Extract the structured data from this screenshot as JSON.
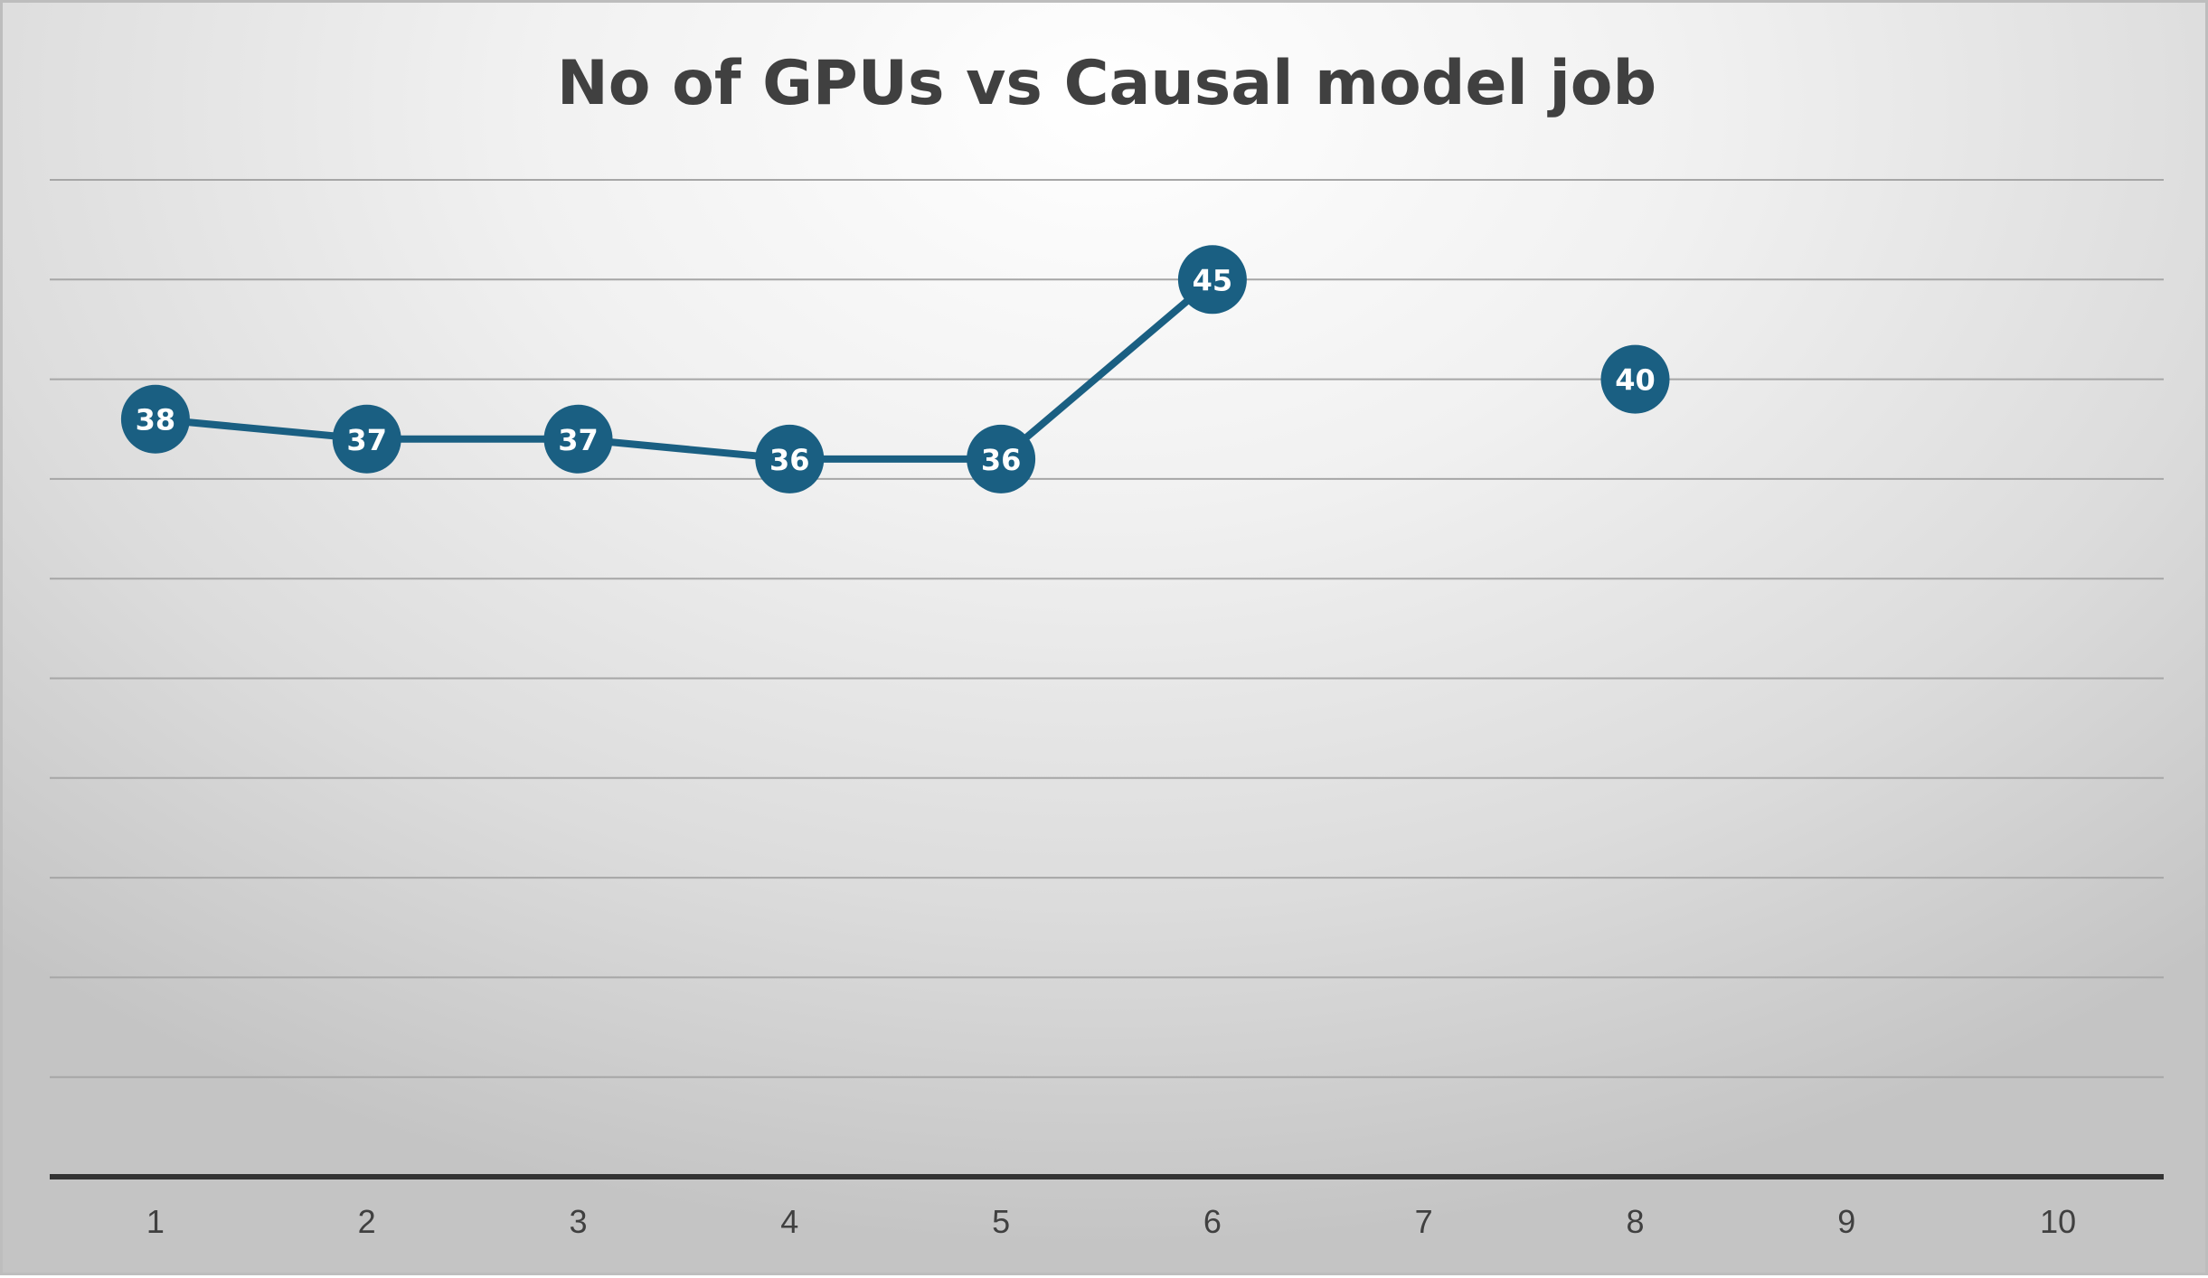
{
  "chart_data": {
    "type": "line",
    "title": "No of GPUs vs Causal model job",
    "xlabel": "",
    "ylabel": "",
    "categories": [
      "1",
      "2",
      "3",
      "4",
      "5",
      "6",
      "7",
      "8",
      "9",
      "10"
    ],
    "series": [
      {
        "values": [
          38,
          37,
          37,
          36,
          36,
          45,
          null,
          40,
          null,
          null
        ]
      }
    ],
    "ylim": [
      0,
      50
    ],
    "y_gridline_step": 5,
    "y_tick_labels_shown": false,
    "data_labels": true,
    "legend": "none",
    "grid": true
  },
  "colors": {
    "series": "#1a5f82",
    "data_label_text": "#ffffff",
    "gridline": "#a6a6a6",
    "axis_line": "#333333",
    "text": "#404040"
  }
}
